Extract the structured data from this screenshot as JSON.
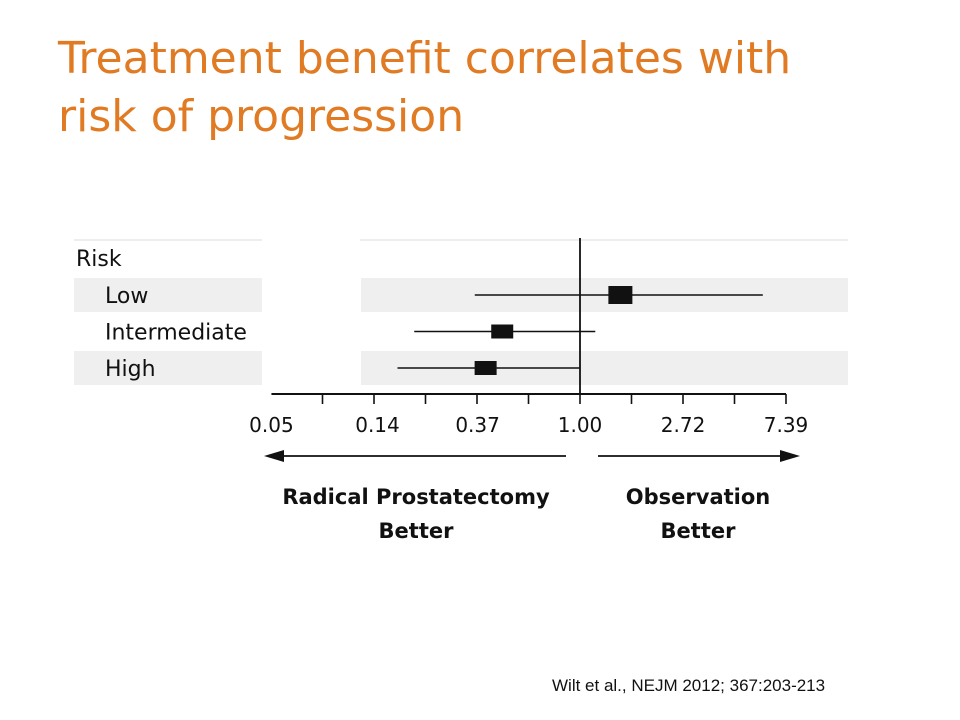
{
  "slide": {
    "title_line1": "Treatment benefit correlates with",
    "title_line2": "risk of progression",
    "citation": "Wilt et al., NEJM 2012; 367:203-213",
    "title_color": "#e07b24"
  },
  "chart_data": {
    "type": "forest",
    "group_label": "Risk",
    "scale": "log",
    "xlim": [
      0.05,
      7.39
    ],
    "x_ticks": [
      "0.05",
      "0.14",
      "0.37",
      "1.00",
      "2.72",
      "7.39"
    ],
    "reference_line": 1.0,
    "rows": [
      {
        "label": "Low",
        "estimate": 1.48,
        "ci_low": 0.36,
        "ci_high": 5.9
      },
      {
        "label": "Intermediate",
        "estimate": 0.47,
        "ci_low": 0.2,
        "ci_high": 1.16
      },
      {
        "label": "High",
        "estimate": 0.4,
        "ci_low": 0.17,
        "ci_high": 1.0
      }
    ],
    "left_direction": [
      "Radical Prostatectomy",
      "Better"
    ],
    "right_direction": [
      "Observation",
      "Better"
    ],
    "row_shade_color": "#efefef"
  }
}
